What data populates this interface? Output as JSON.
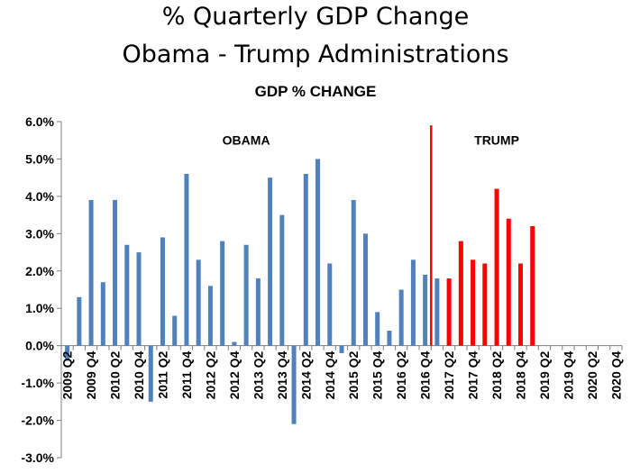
{
  "title_line1": "% Quarterly GDP Change",
  "title_line2": "Obama - Trump Administrations",
  "chart_data": {
    "type": "bar",
    "title": "GDP % CHANGE",
    "xlabel": "",
    "ylabel": "",
    "ylim": [
      -3.0,
      6.0
    ],
    "y_ticks": [
      "6.0%",
      "5.0%",
      "4.0%",
      "3.0%",
      "2.0%",
      "1.0%",
      "0.0%",
      "-1.0%",
      "-2.0%",
      "-3.0%"
    ],
    "y_tick_values": [
      6,
      5,
      4,
      3,
      2,
      1,
      0,
      -1,
      -2,
      -3
    ],
    "grid": false,
    "x_tick_labels": [
      "2009 Q2",
      "2009 Q4",
      "2010 Q2",
      "2010 Q4",
      "2011 Q2",
      "2011 Q4",
      "2012 Q2",
      "2012 Q4",
      "2013 Q2",
      "2013 Q4",
      "2014 Q2",
      "2014 Q4",
      "2015 Q2",
      "2015 Q4",
      "2016 Q2",
      "2016 Q4",
      "2017 Q2",
      "2017 Q4",
      "2018 Q2",
      "2018 Q4",
      "2019 Q2",
      "2019 Q4",
      "2020 Q2",
      "2020 Q4"
    ],
    "categories": [
      "2009 Q2",
      "2009 Q3",
      "2009 Q4",
      "2010 Q1",
      "2010 Q2",
      "2010 Q3",
      "2010 Q4",
      "2011 Q1",
      "2011 Q2",
      "2011 Q3",
      "2011 Q4",
      "2012 Q1",
      "2012 Q2",
      "2012 Q3",
      "2012 Q4",
      "2013 Q1",
      "2013 Q2",
      "2013 Q3",
      "2013 Q4",
      "2014 Q1",
      "2014 Q2",
      "2014 Q3",
      "2014 Q4",
      "2015 Q1",
      "2015 Q2",
      "2015 Q3",
      "2015 Q4",
      "2016 Q1",
      "2016 Q2",
      "2016 Q3",
      "2016 Q4",
      "2017 Q1",
      "2017 Q2",
      "2017 Q3",
      "2017 Q4",
      "2018 Q1",
      "2018 Q2",
      "2018 Q3",
      "2018 Q4",
      "2019 Q1",
      "2019 Q2",
      "2019 Q3",
      "2019 Q4",
      "2020 Q1",
      "2020 Q2",
      "2020 Q3",
      "2020 Q4"
    ],
    "series": [
      {
        "name": "OBAMA",
        "color": "#4f81bd",
        "values": [
          -0.4,
          1.3,
          3.9,
          1.7,
          3.9,
          2.7,
          2.5,
          -1.5,
          2.9,
          0.8,
          4.6,
          2.3,
          1.6,
          2.8,
          0.1,
          2.7,
          1.8,
          4.5,
          3.5,
          -2.1,
          4.6,
          5.0,
          2.2,
          -0.2,
          3.9,
          3.0,
          0.9,
          0.4,
          1.5,
          2.3,
          1.9,
          1.8,
          null,
          null,
          null,
          null,
          null,
          null,
          null,
          null,
          null,
          null,
          null,
          null,
          null,
          null,
          null
        ]
      },
      {
        "name": "TRUMP",
        "color": "#ff0000",
        "values": [
          null,
          null,
          null,
          null,
          null,
          null,
          null,
          null,
          null,
          null,
          null,
          null,
          null,
          null,
          null,
          null,
          null,
          null,
          null,
          null,
          null,
          null,
          null,
          null,
          null,
          null,
          null,
          null,
          null,
          null,
          null,
          null,
          1.8,
          2.8,
          2.3,
          2.2,
          4.2,
          3.4,
          2.2,
          3.2,
          null,
          null,
          null,
          null,
          null,
          null,
          null
        ]
      }
    ],
    "annotations": [
      {
        "text": "OBAMA",
        "x": "2013 Q1",
        "y": 5.5
      },
      {
        "text": "TRUMP",
        "x": "2018 Q2",
        "y": 5.5
      }
    ],
    "divider": {
      "after": "2016 Q4",
      "color": "#ff0000",
      "y_top": 5.9
    }
  }
}
